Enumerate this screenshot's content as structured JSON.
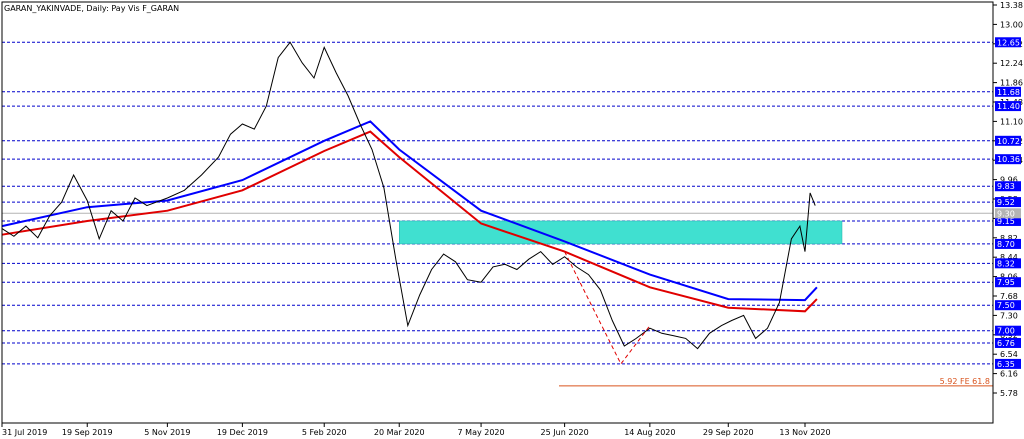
{
  "chart_data": {
    "type": "line",
    "title": "GARAN_YAKINVADE, Daily:  Pay Vis F_GARAN",
    "ylim": [
      5.78,
      13.38
    ],
    "y_ticks": [
      "13.38",
      "13.00",
      "12.62",
      "12.24",
      "11.86",
      "11.48",
      "11.10",
      "10.72",
      "10.34",
      "9.96",
      "9.58",
      "9.20",
      "8.82",
      "8.44",
      "8.06",
      "7.68",
      "7.30",
      "6.92",
      "6.54",
      "6.16",
      "5.78"
    ],
    "x_ticks": [
      "31 Jul 2019",
      "19 Sep 2019",
      "5 Nov 2019",
      "19 Dec 2019",
      "5 Feb 2020",
      "20 Mar 2020",
      "7 May 2020",
      "25 Jun 2020",
      "14 Aug 2020",
      "29 Sep 2020",
      "13 Nov 2020"
    ],
    "level_lines": [
      {
        "label": "12.65",
        "value": 12.65
      },
      {
        "label": "11.68",
        "value": 11.68
      },
      {
        "label": "11.40",
        "value": 11.4
      },
      {
        "label": "10.72",
        "value": 10.72
      },
      {
        "label": "10.36",
        "value": 10.36
      },
      {
        "label": "9.83",
        "value": 9.83
      },
      {
        "label": "9.52",
        "value": 9.52
      },
      {
        "label": "9.15",
        "value": 9.15
      },
      {
        "label": "8.70",
        "value": 8.7
      },
      {
        "label": "8.32",
        "value": 8.32
      },
      {
        "label": "7.95",
        "value": 7.95
      },
      {
        "label": "7.50",
        "value": 7.5
      },
      {
        "label": "7.00",
        "value": 7.0
      },
      {
        "label": "6.76",
        "value": 6.76
      },
      {
        "label": "6.35",
        "value": 6.35
      }
    ],
    "current_price": {
      "label": "9.30",
      "value": 9.3
    },
    "zone": {
      "from_date": "20 Mar 2020",
      "to_date": "after 13 Nov 2020",
      "low": 8.7,
      "high": 9.15,
      "color": "#40e0d0"
    },
    "fib_line": {
      "label": "5.92 FE 61.8",
      "value": 5.92
    },
    "series": [
      {
        "name": "",
        "color": "#0000ff",
        "points": [
          [
            "31 Jul 2019",
            9.05
          ],
          [
            "19 Sep 2019",
            9.42
          ],
          [
            "5 Nov 2019",
            9.55
          ],
          [
            "19 Dec 2019",
            9.95
          ],
          [
            "5 Feb 2020",
            10.72
          ],
          [
            "3 Mar 2020",
            11.1
          ],
          [
            "20 Mar 2020",
            10.55
          ],
          [
            "7 May 2020",
            9.35
          ],
          [
            "25 Jun 2020",
            8.75
          ],
          [
            "14 Aug 2020",
            8.1
          ],
          [
            "29 Sep 2020",
            7.62
          ],
          [
            "13 Nov 2020",
            7.6
          ],
          [
            "20 Nov 2020",
            7.85
          ]
        ]
      },
      {
        "name": "",
        "color": "#e00000",
        "points": [
          [
            "31 Jul 2019",
            8.88
          ],
          [
            "19 Sep 2019",
            9.15
          ],
          [
            "5 Nov 2019",
            9.35
          ],
          [
            "19 Dec 2019",
            9.75
          ],
          [
            "5 Feb 2020",
            10.52
          ],
          [
            "3 Mar 2020",
            10.9
          ],
          [
            "20 Mar 2020",
            10.4
          ],
          [
            "7 May 2020",
            9.1
          ],
          [
            "25 Jun 2020",
            8.55
          ],
          [
            "14 Aug 2020",
            7.85
          ],
          [
            "29 Sep 2020",
            7.45
          ],
          [
            "13 Nov 2020",
            7.38
          ],
          [
            "20 Nov 2020",
            7.62
          ]
        ]
      },
      {
        "name": "",
        "color": "#000000",
        "points": [
          [
            "31 Jul 2019",
            9.0
          ],
          [
            "7 Aug 2019",
            8.85
          ],
          [
            "14 Aug 2019",
            9.05
          ],
          [
            "21 Aug 2019",
            8.82
          ],
          [
            "28 Aug 2019",
            9.25
          ],
          [
            "4 Sep 2019",
            9.52
          ],
          [
            "11 Sep 2019",
            10.05
          ],
          [
            "19 Sep 2019",
            9.55
          ],
          [
            "26 Sep 2019",
            8.8
          ],
          [
            "3 Oct 2019",
            9.35
          ],
          [
            "10 Oct 2019",
            9.15
          ],
          [
            "17 Oct 2019",
            9.6
          ],
          [
            "24 Oct 2019",
            9.45
          ],
          [
            "5 Nov 2019",
            9.6
          ],
          [
            "15 Nov 2019",
            9.75
          ],
          [
            "25 Nov 2019",
            10.05
          ],
          [
            "5 Dec 2019",
            10.4
          ],
          [
            "12 Dec 2019",
            10.85
          ],
          [
            "19 Dec 2019",
            11.05
          ],
          [
            "26 Dec 2019",
            10.95
          ],
          [
            "2 Jan 2020",
            11.4
          ],
          [
            "9 Jan 2020",
            12.35
          ],
          [
            "16 Jan 2020",
            12.65
          ],
          [
            "23 Jan 2020",
            12.25
          ],
          [
            "30 Jan 2020",
            11.95
          ],
          [
            "5 Feb 2020",
            12.55
          ],
          [
            "12 Feb 2020",
            12.05
          ],
          [
            "19 Feb 2020",
            11.6
          ],
          [
            "26 Feb 2020",
            11.05
          ],
          [
            "4 Mar 2020",
            10.55
          ],
          [
            "11 Mar 2020",
            9.8
          ],
          [
            "18 Mar 2020",
            8.4
          ],
          [
            "25 Mar 2020",
            7.1
          ],
          [
            "1 Apr 2020",
            7.7
          ],
          [
            "8 Apr 2020",
            8.2
          ],
          [
            "15 Apr 2020",
            8.5
          ],
          [
            "22 Apr 2020",
            8.35
          ],
          [
            "29 Apr 2020",
            8.0
          ],
          [
            "7 May 2020",
            7.95
          ],
          [
            "14 May 2020",
            8.25
          ],
          [
            "21 May 2020",
            8.3
          ],
          [
            "28 May 2020",
            8.2
          ],
          [
            "4 Jun 2020",
            8.4
          ],
          [
            "11 Jun 2020",
            8.55
          ],
          [
            "18 Jun 2020",
            8.3
          ],
          [
            "25 Jun 2020",
            8.45
          ],
          [
            "2 Jul 2020",
            8.25
          ],
          [
            "9 Jul 2020",
            8.1
          ],
          [
            "16 Jul 2020",
            7.8
          ],
          [
            "23 Jul 2020",
            7.2
          ],
          [
            "30 Jul 2020",
            6.7
          ],
          [
            "6 Aug 2020",
            6.85
          ],
          [
            "14 Aug 2020",
            7.05
          ],
          [
            "21 Aug 2020",
            6.95
          ],
          [
            "28 Aug 2020",
            6.9
          ],
          [
            "4 Sep 2020",
            6.85
          ],
          [
            "11 Sep 2020",
            6.65
          ],
          [
            "18 Sep 2020",
            6.95
          ],
          [
            "25 Sep 2020",
            7.1
          ],
          [
            "1 Oct 2020",
            7.2
          ],
          [
            "8 Oct 2020",
            7.3
          ],
          [
            "15 Oct 2020",
            6.85
          ],
          [
            "22 Oct 2020",
            7.05
          ],
          [
            "29 Oct 2020",
            7.55
          ],
          [
            "5 Nov 2020",
            8.8
          ],
          [
            "10 Nov 2020",
            9.05
          ],
          [
            "13 Nov 2020",
            8.55
          ],
          [
            "16 Nov 2020",
            9.7
          ],
          [
            "19 Nov 2020",
            9.45
          ]
        ]
      }
    ],
    "projection": {
      "color": "#e00000",
      "style": "dashed",
      "points": [
        [
          "25 Jun 2020",
          8.55
        ],
        [
          "28 Jul 2020",
          6.35
        ],
        [
          "14 Aug 2020",
          7.1
        ]
      ]
    },
    "colors": {
      "level_line": "#0000cc",
      "badge": "#0000ff",
      "current_price": "#b4b4b4",
      "fib": "#d9541e",
      "zone": "#40e0d0"
    }
  }
}
